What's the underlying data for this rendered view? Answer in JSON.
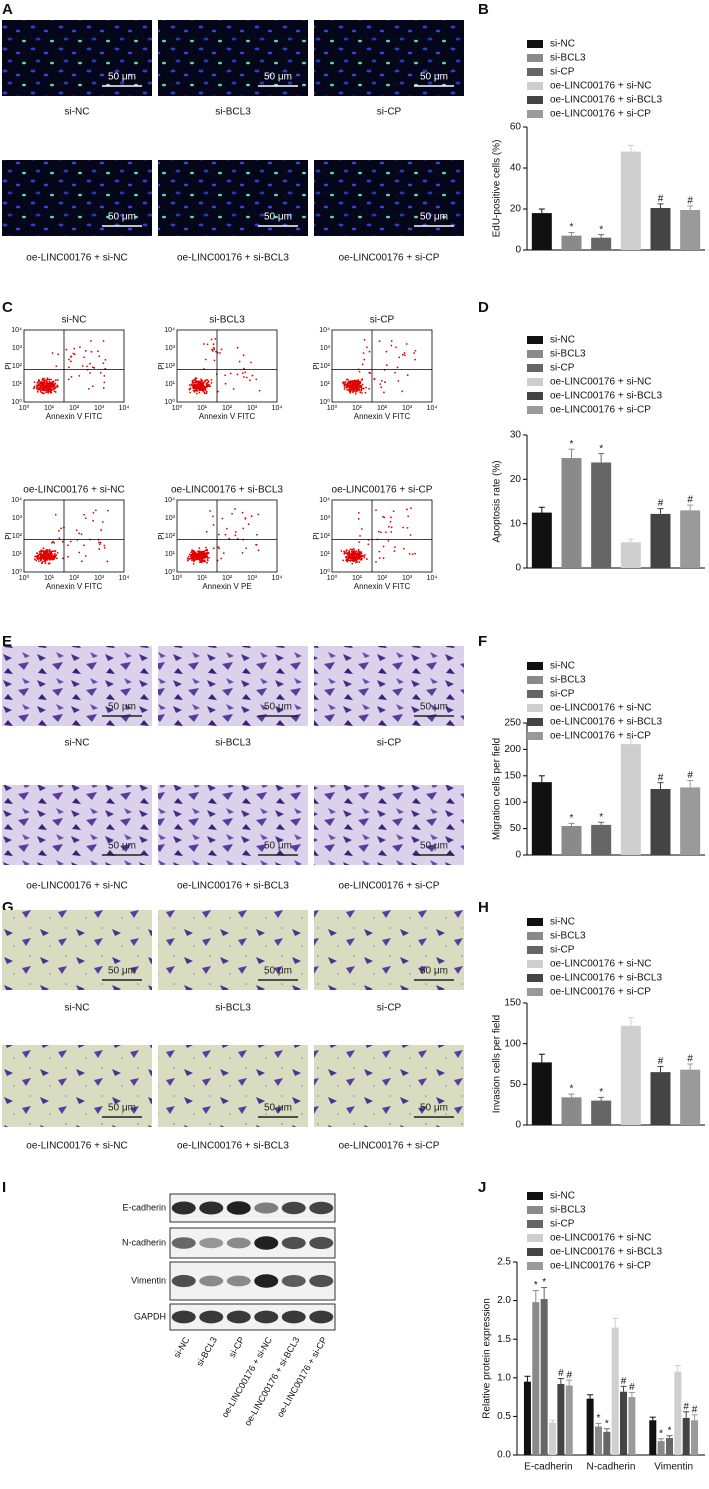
{
  "panel_labels": [
    "A",
    "B",
    "C",
    "D",
    "E",
    "F",
    "G",
    "H",
    "I",
    "J"
  ],
  "image_captions": [
    "si-NC",
    "si-BCL3",
    "si-CP",
    "oe-LINC00176 + si-NC",
    "oe-LINC00176 + si-BCL3",
    "oe-LINC00176 + si-CP"
  ],
  "scale_bar": "50 μm",
  "flow": {
    "y_label": "PI",
    "x_labels": [
      "Annexin V FITC",
      "Annexin V FITC",
      "Annexin V FITC",
      "Annexin V FITC",
      "Annexin V PE",
      "Annexin V FITC"
    ],
    "ticks": [
      "10⁰",
      "10¹",
      "10²",
      "10³",
      "10⁴"
    ]
  },
  "blot": {
    "rows": [
      "E-cadherin",
      "N-cadherin",
      "Vimentin",
      "GAPDH"
    ],
    "lanes": [
      "si-NC",
      "si-BCL3",
      "si-CP",
      "oe-LINC00176 + si-NC",
      "oe-LINC00176 + si-BCL3",
      "oe-LINC00176 + si-CP"
    ]
  },
  "chart_data": [
    {
      "type": "bar",
      "y_label": "EdU-positive cells (%)",
      "categories": [
        "si-NC",
        "si-BCL3",
        "si-CP",
        "oe-LINC00176 + si-NC",
        "oe-LINC00176 + si-BCL3",
        "oe-LINC00176 + si-CP"
      ],
      "colors": [
        "#111111",
        "#8a8a8a",
        "#666666",
        "#cfcfcf",
        "#444444",
        "#9a9a9a"
      ],
      "values": [
        18,
        7,
        6,
        48,
        20.5,
        19.5
      ],
      "errors": [
        2,
        1.5,
        1.5,
        3,
        2,
        2
      ],
      "value_marks": [
        null,
        "*",
        "*",
        null,
        "#",
        "#"
      ],
      "ylim": [
        0,
        60
      ],
      "yticks": [
        0,
        20,
        40,
        60
      ]
    },
    {
      "type": "bar",
      "y_label": "Apoptosis rate (%)",
      "categories": [
        "si-NC",
        "si-BCL3",
        "si-CP",
        "oe-LINC00176 + si-NC",
        "oe-LINC00176 + si-BCL3",
        "oe-LINC00176 + si-CP"
      ],
      "colors": [
        "#111111",
        "#8a8a8a",
        "#666666",
        "#cfcfcf",
        "#444444",
        "#9a9a9a"
      ],
      "values": [
        12.5,
        24.8,
        23.8,
        5.8,
        12.2,
        13
      ],
      "errors": [
        1.2,
        2,
        2,
        0.7,
        1.2,
        1.2
      ],
      "value_marks": [
        null,
        "*",
        "*",
        null,
        "#",
        "#"
      ],
      "ylim": [
        0,
        30
      ],
      "yticks": [
        0,
        10,
        20,
        30
      ]
    },
    {
      "type": "bar",
      "y_label": "Migration cells per field",
      "categories": [
        "si-NC",
        "si-BCL3",
        "si-CP",
        "oe-LINC00176 + si-NC",
        "oe-LINC00176 + si-BCL3",
        "oe-LINC00176 + si-CP"
      ],
      "colors": [
        "#111111",
        "#8a8a8a",
        "#666666",
        "#cfcfcf",
        "#444444",
        "#9a9a9a"
      ],
      "values": [
        138,
        55,
        57,
        210,
        125,
        128
      ],
      "errors": [
        12,
        5,
        5,
        18,
        12,
        13
      ],
      "value_marks": [
        null,
        "*",
        "*",
        null,
        "#",
        "#"
      ],
      "ylim": [
        0,
        250
      ],
      "yticks": [
        0,
        50,
        100,
        150,
        200,
        250
      ]
    },
    {
      "type": "bar",
      "y_label": "Invasion cells per field",
      "categories": [
        "si-NC",
        "si-BCL3",
        "si-CP",
        "oe-LINC00176 + si-NC",
        "oe-LINC00176 + si-BCL3",
        "oe-LINC00176 + si-CP"
      ],
      "colors": [
        "#111111",
        "#8a8a8a",
        "#666666",
        "#cfcfcf",
        "#444444",
        "#9a9a9a"
      ],
      "values": [
        77,
        34,
        30,
        122,
        65,
        68
      ],
      "errors": [
        10,
        4,
        4,
        10,
        7,
        7
      ],
      "value_marks": [
        null,
        "*",
        "*",
        null,
        "#",
        "#"
      ],
      "ylim": [
        0,
        150
      ],
      "yticks": [
        0,
        50,
        100,
        150
      ]
    },
    {
      "type": "grouped_bar",
      "y_label": "Relative protein expression",
      "categories": [
        "E-cadherin",
        "N-cadherin",
        "Vimentin"
      ],
      "series": [
        {
          "name": "si-NC",
          "color": "#111111",
          "values": [
            0.95,
            0.73,
            0.45
          ],
          "errors": [
            0.07,
            0.05,
            0.04
          ],
          "value_marks": [
            null,
            null,
            null
          ]
        },
        {
          "name": "si-BCL3",
          "color": "#8a8a8a",
          "values": [
            1.98,
            0.37,
            0.18
          ],
          "errors": [
            0.15,
            0.04,
            0.03
          ],
          "value_marks": [
            "*",
            "*",
            "*"
          ]
        },
        {
          "name": "si-CP",
          "color": "#666666",
          "values": [
            2.02,
            0.3,
            0.22
          ],
          "errors": [
            0.15,
            0.04,
            0.03
          ],
          "value_marks": [
            "*",
            "*",
            "*"
          ]
        },
        {
          "name": "oe-LINC00176 + si-NC",
          "color": "#cfcfcf",
          "values": [
            0.42,
            1.65,
            1.08
          ],
          "errors": [
            0.03,
            0.12,
            0.08
          ],
          "value_marks": [
            null,
            null,
            null
          ]
        },
        {
          "name": "oe-LINC00176 + si-BCL3",
          "color": "#444444",
          "values": [
            0.92,
            0.82,
            0.48
          ],
          "errors": [
            0.07,
            0.07,
            0.08
          ],
          "value_marks": [
            "#",
            "#",
            "#"
          ]
        },
        {
          "name": "oe-LINC00176 + si-CP",
          "color": "#9a9a9a",
          "values": [
            0.9,
            0.75,
            0.45
          ],
          "errors": [
            0.07,
            0.06,
            0.07
          ],
          "value_marks": [
            "#",
            "#",
            "#"
          ]
        }
      ],
      "ylim": [
        0,
        2.5
      ],
      "yticks": [
        {
          "value": 0,
          "label": "0.0"
        },
        0.5,
        {
          "value": 1,
          "label": "1.0"
        },
        1.5,
        {
          "value": 2,
          "label": "2.0"
        },
        2.5
      ]
    }
  ]
}
